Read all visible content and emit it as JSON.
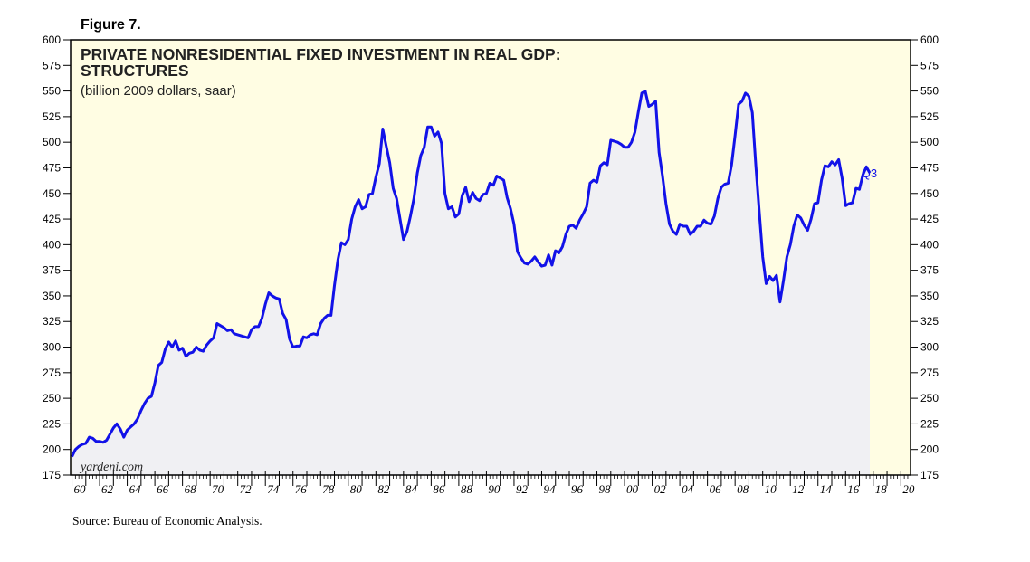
{
  "figure_label": "Figure 7.",
  "source": "Source: Bureau of Economic Analysis.",
  "watermark": "yardeni.com",
  "colors": {
    "plot_background": "#fffde3",
    "area_fill": "#f0f0f3",
    "line": "#1212e8",
    "border": "#000000"
  },
  "chart_data": {
    "type": "area",
    "title_line1": "PRIVATE NONRESIDENTIAL FIXED INVESTMENT IN REAL GDP:",
    "title_line2": "STRUCTURES",
    "subtitle": "(billion 2009 dollars, saar)",
    "units": "billion 2009 dollars, saar",
    "ylim": [
      175,
      600
    ],
    "y_ticks": [
      175,
      200,
      225,
      250,
      275,
      300,
      325,
      350,
      375,
      400,
      425,
      450,
      475,
      500,
      525,
      550,
      575,
      600
    ],
    "xlim": [
      1959.9,
      2020.7
    ],
    "x_tick_labels": [
      {
        "year": 1960,
        "label": "60"
      },
      {
        "year": 1962,
        "label": "62"
      },
      {
        "year": 1964,
        "label": "64"
      },
      {
        "year": 1966,
        "label": "66"
      },
      {
        "year": 1968,
        "label": "68"
      },
      {
        "year": 1970,
        "label": "70"
      },
      {
        "year": 1972,
        "label": "72"
      },
      {
        "year": 1974,
        "label": "74"
      },
      {
        "year": 1976,
        "label": "76"
      },
      {
        "year": 1978,
        "label": "78"
      },
      {
        "year": 1980,
        "label": "80"
      },
      {
        "year": 1982,
        "label": "82"
      },
      {
        "year": 1984,
        "label": "84"
      },
      {
        "year": 1986,
        "label": "86"
      },
      {
        "year": 1988,
        "label": "88"
      },
      {
        "year": 1990,
        "label": "90"
      },
      {
        "year": 1992,
        "label": "92"
      },
      {
        "year": 1994,
        "label": "94"
      },
      {
        "year": 1996,
        "label": "96"
      },
      {
        "year": 1998,
        "label": "98"
      },
      {
        "year": 2000,
        "label": "00"
      },
      {
        "year": 2002,
        "label": "02"
      },
      {
        "year": 2004,
        "label": "04"
      },
      {
        "year": 2006,
        "label": "06"
      },
      {
        "year": 2008,
        "label": "08"
      },
      {
        "year": 2010,
        "label": "10"
      },
      {
        "year": 2012,
        "label": "12"
      },
      {
        "year": 2014,
        "label": "14"
      },
      {
        "year": 2016,
        "label": "16"
      },
      {
        "year": 2018,
        "label": "18"
      },
      {
        "year": 2020,
        "label": "20"
      }
    ],
    "grid": false,
    "annotation": {
      "text": "Q3",
      "year": 2016.75,
      "value": 470
    },
    "series": [
      {
        "name": "Structures",
        "points": [
          [
            1960.0,
            193
          ],
          [
            1960.25,
            200
          ],
          [
            1960.5,
            203
          ],
          [
            1960.75,
            205
          ],
          [
            1961.0,
            206
          ],
          [
            1961.25,
            212
          ],
          [
            1961.5,
            211
          ],
          [
            1961.75,
            208
          ],
          [
            1962.0,
            208
          ],
          [
            1962.25,
            207
          ],
          [
            1962.5,
            209
          ],
          [
            1962.75,
            215
          ],
          [
            1963.0,
            221
          ],
          [
            1963.25,
            225
          ],
          [
            1963.5,
            220
          ],
          [
            1963.75,
            212
          ],
          [
            1964.0,
            219
          ],
          [
            1964.25,
            222
          ],
          [
            1964.5,
            225
          ],
          [
            1964.75,
            230
          ],
          [
            1965.0,
            238
          ],
          [
            1965.25,
            245
          ],
          [
            1965.5,
            250
          ],
          [
            1965.75,
            252
          ],
          [
            1966.0,
            265
          ],
          [
            1966.25,
            282
          ],
          [
            1966.5,
            285
          ],
          [
            1966.75,
            298
          ],
          [
            1967.0,
            305
          ],
          [
            1967.25,
            300
          ],
          [
            1967.5,
            306
          ],
          [
            1967.75,
            297
          ],
          [
            1968.0,
            299
          ],
          [
            1968.25,
            291
          ],
          [
            1968.5,
            294
          ],
          [
            1968.75,
            295
          ],
          [
            1969.0,
            300
          ],
          [
            1969.25,
            297
          ],
          [
            1969.5,
            296
          ],
          [
            1969.75,
            302
          ],
          [
            1970.0,
            306
          ],
          [
            1970.25,
            309
          ],
          [
            1970.5,
            323
          ],
          [
            1970.75,
            321
          ],
          [
            1971.0,
            319
          ],
          [
            1971.25,
            316
          ],
          [
            1971.5,
            317
          ],
          [
            1971.75,
            313
          ],
          [
            1972.0,
            312
          ],
          [
            1972.25,
            311
          ],
          [
            1972.5,
            310
          ],
          [
            1972.75,
            309
          ],
          [
            1973.0,
            317
          ],
          [
            1973.25,
            320
          ],
          [
            1973.5,
            320
          ],
          [
            1973.75,
            328
          ],
          [
            1974.0,
            342
          ],
          [
            1974.25,
            353
          ],
          [
            1974.5,
            350
          ],
          [
            1974.75,
            348
          ],
          [
            1975.0,
            347
          ],
          [
            1975.25,
            333
          ],
          [
            1975.5,
            327
          ],
          [
            1975.75,
            308
          ],
          [
            1976.0,
            300
          ],
          [
            1976.25,
            301
          ],
          [
            1976.5,
            301
          ],
          [
            1976.75,
            310
          ],
          [
            1977.0,
            309
          ],
          [
            1977.25,
            312
          ],
          [
            1977.5,
            313
          ],
          [
            1977.75,
            312
          ],
          [
            1978.0,
            323
          ],
          [
            1978.25,
            328
          ],
          [
            1978.5,
            331
          ],
          [
            1978.75,
            331
          ],
          [
            1979.0,
            360
          ],
          [
            1979.25,
            385
          ],
          [
            1979.5,
            402
          ],
          [
            1979.75,
            400
          ],
          [
            1980.0,
            405
          ],
          [
            1980.25,
            425
          ],
          [
            1980.5,
            437
          ],
          [
            1980.75,
            444
          ],
          [
            1981.0,
            435
          ],
          [
            1981.25,
            437
          ],
          [
            1981.5,
            449
          ],
          [
            1981.75,
            450
          ],
          [
            1982.0,
            466
          ],
          [
            1982.25,
            479
          ],
          [
            1982.5,
            513
          ],
          [
            1982.75,
            496
          ],
          [
            1983.0,
            480
          ],
          [
            1983.25,
            455
          ],
          [
            1983.5,
            445
          ],
          [
            1983.75,
            425
          ],
          [
            1984.0,
            405
          ],
          [
            1984.25,
            413
          ],
          [
            1984.5,
            428
          ],
          [
            1984.75,
            445
          ],
          [
            1985.0,
            470
          ],
          [
            1985.25,
            487
          ],
          [
            1985.5,
            495
          ],
          [
            1985.75,
            515
          ],
          [
            1986.0,
            515
          ],
          [
            1986.25,
            506
          ],
          [
            1986.5,
            510
          ],
          [
            1986.75,
            499
          ],
          [
            1987.0,
            450
          ],
          [
            1987.25,
            435
          ],
          [
            1987.5,
            437
          ],
          [
            1987.75,
            427
          ],
          [
            1988.0,
            430
          ],
          [
            1988.25,
            448
          ],
          [
            1988.5,
            456
          ],
          [
            1988.75,
            442
          ],
          [
            1989.0,
            451
          ],
          [
            1989.25,
            445
          ],
          [
            1989.5,
            443
          ],
          [
            1989.75,
            449
          ],
          [
            1990.0,
            450
          ],
          [
            1990.25,
            460
          ],
          [
            1990.5,
            458
          ],
          [
            1990.75,
            467
          ],
          [
            1991.0,
            465
          ],
          [
            1991.25,
            463
          ],
          [
            1991.5,
            446
          ],
          [
            1991.75,
            435
          ],
          [
            1992.0,
            420
          ],
          [
            1992.25,
            393
          ],
          [
            1992.5,
            387
          ],
          [
            1992.75,
            382
          ],
          [
            1993.0,
            381
          ],
          [
            1993.25,
            384
          ],
          [
            1993.5,
            388
          ],
          [
            1993.75,
            383
          ],
          [
            1994.0,
            379
          ],
          [
            1994.25,
            380
          ],
          [
            1994.5,
            390
          ],
          [
            1994.75,
            380
          ],
          [
            1995.0,
            394
          ],
          [
            1995.25,
            392
          ],
          [
            1995.5,
            398
          ],
          [
            1995.75,
            410
          ],
          [
            1996.0,
            418
          ],
          [
            1996.25,
            419
          ],
          [
            1996.5,
            416
          ],
          [
            1996.75,
            424
          ],
          [
            1997.0,
            430
          ],
          [
            1997.25,
            437
          ],
          [
            1997.5,
            460
          ],
          [
            1997.75,
            463
          ],
          [
            1998.0,
            461
          ],
          [
            1998.25,
            477
          ],
          [
            1998.5,
            480
          ],
          [
            1998.75,
            478
          ],
          [
            1999.0,
            502
          ],
          [
            1999.25,
            501
          ],
          [
            1999.5,
            500
          ],
          [
            1999.75,
            498
          ],
          [
            2000.0,
            495
          ],
          [
            2000.25,
            495
          ],
          [
            2000.5,
            500
          ],
          [
            2000.75,
            510
          ],
          [
            2001.0,
            530
          ],
          [
            2001.25,
            548
          ],
          [
            2001.5,
            550
          ],
          [
            2001.75,
            535
          ],
          [
            2002.0,
            537
          ],
          [
            2002.25,
            540
          ],
          [
            2002.5,
            490
          ],
          [
            2002.75,
            467
          ],
          [
            2003.0,
            440
          ],
          [
            2003.25,
            420
          ],
          [
            2003.5,
            413
          ],
          [
            2003.75,
            410
          ],
          [
            2004.0,
            420
          ],
          [
            2004.25,
            418
          ],
          [
            2004.5,
            418
          ],
          [
            2004.75,
            410
          ],
          [
            2005.0,
            413
          ],
          [
            2005.25,
            418
          ],
          [
            2005.5,
            418
          ],
          [
            2005.75,
            424
          ],
          [
            2006.0,
            421
          ],
          [
            2006.25,
            420
          ],
          [
            2006.5,
            428
          ],
          [
            2006.75,
            445
          ],
          [
            2007.0,
            456
          ],
          [
            2007.25,
            459
          ],
          [
            2007.5,
            460
          ],
          [
            2007.75,
            478
          ],
          [
            2008.0,
            507
          ],
          [
            2008.25,
            537
          ],
          [
            2008.5,
            540
          ],
          [
            2008.75,
            548
          ],
          [
            2009.0,
            545
          ],
          [
            2009.25,
            529
          ],
          [
            2009.5,
            477
          ],
          [
            2009.75,
            432
          ],
          [
            2010.0,
            388
          ],
          [
            2010.25,
            362
          ],
          [
            2010.5,
            369
          ],
          [
            2010.75,
            365
          ],
          [
            2011.0,
            370
          ],
          [
            2011.25,
            344
          ],
          [
            2011.5,
            365
          ],
          [
            2011.75,
            388
          ],
          [
            2012.0,
            400
          ],
          [
            2012.25,
            418
          ],
          [
            2012.5,
            429
          ],
          [
            2012.75,
            426
          ],
          [
            2013.0,
            419
          ],
          [
            2013.25,
            414
          ],
          [
            2013.5,
            425
          ],
          [
            2013.75,
            440
          ],
          [
            2014.0,
            441
          ],
          [
            2014.25,
            463
          ],
          [
            2014.5,
            477
          ],
          [
            2014.75,
            476
          ],
          [
            2015.0,
            481
          ],
          [
            2015.25,
            478
          ],
          [
            2015.5,
            483
          ],
          [
            2015.75,
            465
          ],
          [
            2016.0,
            438
          ],
          [
            2016.25,
            440
          ],
          [
            2016.5,
            441
          ],
          [
            2016.75,
            455
          ],
          [
            2017.0,
            454
          ],
          [
            2017.25,
            468
          ],
          [
            2017.5,
            476
          ],
          [
            2017.75,
            470
          ]
        ]
      }
    ]
  }
}
